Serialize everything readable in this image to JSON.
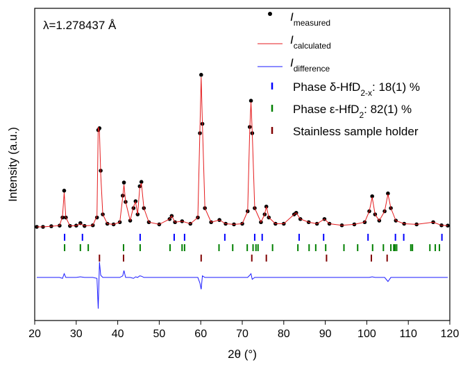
{
  "chart_data": {
    "type": "scatter",
    "annotation": "λ=1.278437 Å",
    "x_label": "2θ (°)",
    "y_label": "Intensity (a.u.)",
    "xlim": [
      20,
      120
    ],
    "xticks": [
      20,
      30,
      40,
      50,
      60,
      70,
      80,
      90,
      100,
      110,
      120
    ],
    "ylim": [
      0,
      100
    ],
    "x": [
      20.5,
      22,
      24,
      26,
      26.7,
      27.1,
      27.5,
      28.5,
      30,
      31,
      32,
      34,
      35,
      35.3,
      35.6,
      35.9,
      36.4,
      37.5,
      39,
      40.5,
      41.2,
      41.5,
      41.9,
      43,
      43.8,
      44.3,
      44.8,
      45.3,
      45.7,
      46.3,
      47.5,
      50,
      52.5,
      53,
      53.8,
      55.5,
      57.5,
      59.3,
      59.8,
      60.1,
      60.4,
      61,
      62.5,
      64.5,
      66,
      68,
      70,
      71.3,
      71.8,
      72.1,
      72.4,
      73,
      74.5,
      75.4,
      75.8,
      76.4,
      78,
      80,
      82.5,
      83,
      84,
      86,
      88,
      89.8,
      91,
      94,
      97,
      99.5,
      100.6,
      101.3,
      102,
      103,
      104.3,
      105.1,
      105.8,
      107,
      109,
      112,
      116,
      118,
      119.5
    ],
    "series": [
      {
        "name": "I",
        "name_sub": "measured",
        "style": "points",
        "color": "#000000",
        "values": [
          30,
          30,
          30.2,
          30.4,
          33,
          41.6,
          33,
          30.3,
          30.4,
          31.2,
          30.3,
          30.5,
          33,
          61,
          61.6,
          48,
          34,
          31,
          30.8,
          31.5,
          40,
          44.2,
          38,
          32,
          36,
          38.2,
          34,
          43,
          44.4,
          36,
          31.5,
          30.8,
          32.5,
          33.5,
          31.5,
          31.8,
          31,
          33,
          60,
          78.7,
          63,
          36,
          31.5,
          32.2,
          31,
          30.8,
          31,
          35,
          62,
          70.4,
          60,
          36,
          31.5,
          34,
          36.5,
          33,
          31,
          31,
          34,
          34.5,
          32.5,
          31.5,
          31,
          32.5,
          31,
          30.5,
          30.8,
          31.5,
          35,
          39.8,
          34,
          32,
          35,
          40.7,
          36,
          32,
          31,
          30.8,
          31.5,
          30.5,
          30.4
        ]
      },
      {
        "name": "I",
        "name_sub": "calculated",
        "style": "line",
        "color": "#e41a1c",
        "values": [
          30,
          30,
          30.2,
          30.4,
          33.5,
          41,
          33,
          30.3,
          30.4,
          31,
          30.3,
          30.5,
          33.5,
          62,
          60.5,
          47,
          34,
          31,
          30.8,
          31.5,
          39.5,
          43.5,
          38,
          32,
          36.5,
          38,
          34,
          42.5,
          44,
          36,
          31.5,
          30.8,
          32.5,
          33.5,
          31.5,
          31.8,
          31,
          33,
          61,
          78,
          63,
          36,
          31.5,
          32.2,
          31,
          30.8,
          31,
          35,
          61,
          70,
          60.5,
          36,
          31.5,
          34,
          36.5,
          33,
          31,
          31,
          34,
          34.5,
          32.5,
          31.5,
          31,
          32.5,
          31,
          30.5,
          30.8,
          31.5,
          35,
          39.5,
          34,
          32,
          35,
          40.5,
          36,
          32,
          31,
          30.8,
          31.5,
          30.5,
          30.4
        ]
      },
      {
        "name": "I",
        "name_sub": "difference",
        "style": "line",
        "color": "#1a1aff",
        "values": [
          13.8,
          13.8,
          13.8,
          13.8,
          13.5,
          15,
          13.8,
          13.8,
          13.8,
          14,
          13.8,
          13.8,
          13.5,
          3.8,
          18.7,
          14.5,
          13.8,
          13.8,
          13.8,
          13.8,
          14.3,
          16,
          13.8,
          13.8,
          13.5,
          14,
          13.8,
          14.3,
          14.2,
          13.8,
          13.8,
          13.8,
          13.8,
          13.8,
          13.8,
          13.8,
          13.8,
          13.8,
          12,
          10,
          14.3,
          13.8,
          13.8,
          13.8,
          13.8,
          13.8,
          13.8,
          13.8,
          14.5,
          15,
          13.2,
          13.8,
          13.8,
          13.8,
          13.8,
          13.8,
          13.8,
          13.8,
          13.8,
          13.8,
          13.8,
          13.8,
          13.8,
          13.8,
          13.8,
          13.8,
          13.8,
          13.8,
          13.8,
          14,
          13.8,
          13.8,
          13.8,
          12.5,
          13.8,
          13.8,
          13.8,
          13.8,
          13.8,
          13.8,
          13.8
        ]
      }
    ],
    "phases": [
      {
        "name": "Phase δ-HfD",
        "name_sub": "2-x",
        "name_after": ": 18(1) %",
        "color": "#0000ff",
        "positions": [
          27.2,
          31.5,
          45.4,
          53.6,
          56.1,
          65.8,
          73.0,
          74.8,
          83.7,
          89.6,
          100.3,
          106.9,
          108.9,
          118.1
        ]
      },
      {
        "name": "Phase ε-HfD",
        "name_sub": "2",
        "name_after": ":  82(1) %",
        "color": "#008000",
        "positions": [
          27.2,
          31.0,
          32.9,
          41.4,
          45.4,
          52.6,
          55.5,
          56.1,
          64.4,
          67.7,
          71.2,
          72.6,
          73.3,
          73.8,
          77.3,
          83.4,
          86.1,
          87.7,
          90.1,
          94.5,
          97.8,
          101.4,
          104.0,
          105.8,
          106.5,
          106.8,
          107.2,
          110.6,
          111.0,
          115.2,
          116.5,
          117.5
        ]
      },
      {
        "name": "Stainless sample holder",
        "color": "#800000",
        "positions": [
          35.6,
          41.4,
          60.1,
          72.3,
          75.8,
          90.3,
          101.1,
          104.9
        ]
      }
    ]
  }
}
